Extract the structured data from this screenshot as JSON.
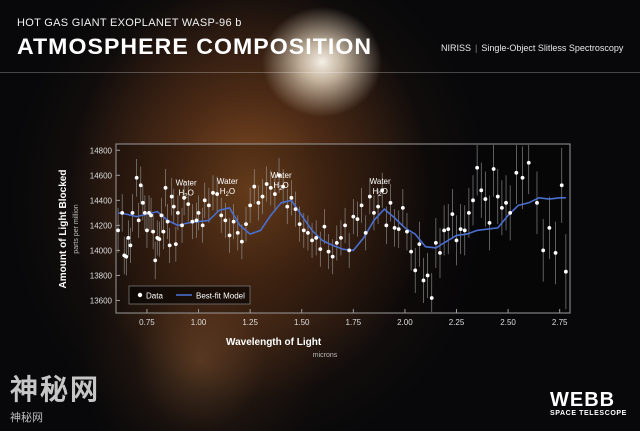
{
  "header": {
    "subtitle": "HOT GAS GIANT EXOPLANET WASP-96 b",
    "title": "ATMOSPHERE COMPOSITION",
    "instrument": "NIRISS",
    "mode": "Single-Object Slitless Spectroscopy"
  },
  "branding": {
    "logo": "WEBB",
    "sub": "SPACE TELESCOPE"
  },
  "watermark": {
    "main": "神秘网",
    "sub": "神秘网"
  },
  "colors": {
    "model_line": "#4a6fcf",
    "data_point": "#ffffff",
    "error_bar": "#9a9a9a"
  },
  "chart_data": {
    "type": "scatter",
    "title": "",
    "xlabel": "Wavelength of Light",
    "xlabel_sub": "microns",
    "ylabel": "Amount of Light Blocked",
    "ylabel_sub": "parts per million",
    "xlim": [
      0.6,
      2.8
    ],
    "ylim": [
      13500,
      14850
    ],
    "x_ticks": [
      0.75,
      1.0,
      1.25,
      1.5,
      1.75,
      2.0,
      2.25,
      2.5,
      2.75
    ],
    "x_tick_labels": [
      "0.75",
      "1.00",
      "1.25",
      "1.50",
      "1.75",
      "2.00",
      "2.25",
      "2.50",
      "2.75"
    ],
    "y_ticks": [
      13600,
      13800,
      14000,
      14200,
      14400,
      14600,
      14800
    ],
    "y_tick_labels": [
      "13600",
      "13800",
      "14000",
      "14200",
      "14400",
      "14600",
      "14800"
    ],
    "legend": {
      "placement": "bottom-left",
      "data_label": "Data",
      "model_label": "Best-fit Model"
    },
    "annotations": [
      {
        "label": "Water",
        "sub": "H2O",
        "x": 0.94,
        "y": 14520
      },
      {
        "label": "Water",
        "sub": "H2O",
        "x": 1.14,
        "y": 14530
      },
      {
        "label": "Water",
        "sub": "H2O",
        "x": 1.4,
        "y": 14580
      },
      {
        "label": "Water",
        "sub": "H2O",
        "x": 1.88,
        "y": 14530
      }
    ],
    "series": [
      {
        "name": "Data",
        "kind": "points",
        "x": [
          0.61,
          0.63,
          0.64,
          0.65,
          0.66,
          0.67,
          0.68,
          0.7,
          0.71,
          0.72,
          0.73,
          0.74,
          0.75,
          0.76,
          0.77,
          0.78,
          0.79,
          0.8,
          0.81,
          0.82,
          0.83,
          0.84,
          0.85,
          0.86,
          0.87,
          0.88,
          0.89,
          0.9,
          0.92,
          0.93,
          0.95,
          0.97,
          0.99,
          1.0,
          1.02,
          1.03,
          1.05,
          1.07,
          1.09,
          1.11,
          1.13,
          1.15,
          1.17,
          1.19,
          1.21,
          1.23,
          1.25,
          1.27,
          1.29,
          1.31,
          1.33,
          1.35,
          1.37,
          1.39,
          1.41,
          1.43,
          1.45,
          1.47,
          1.49,
          1.51,
          1.53,
          1.55,
          1.57,
          1.59,
          1.61,
          1.63,
          1.65,
          1.67,
          1.69,
          1.71,
          1.73,
          1.75,
          1.77,
          1.79,
          1.81,
          1.83,
          1.85,
          1.87,
          1.89,
          1.91,
          1.93,
          1.95,
          1.97,
          1.99,
          2.01,
          2.03,
          2.05,
          2.07,
          2.09,
          2.11,
          2.13,
          2.15,
          2.17,
          2.19,
          2.21,
          2.23,
          2.25,
          2.27,
          2.29,
          2.31,
          2.33,
          2.35,
          2.37,
          2.39,
          2.41,
          2.43,
          2.45,
          2.47,
          2.49,
          2.51,
          2.54,
          2.57,
          2.6,
          2.64,
          2.67,
          2.7,
          2.73,
          2.76,
          2.78
        ],
        "y": [
          14160,
          14300,
          13960,
          13950,
          14100,
          14040,
          14300,
          14580,
          14240,
          14520,
          14380,
          14300,
          14160,
          14300,
          14280,
          14150,
          13920,
          14100,
          14090,
          14280,
          14150,
          14500,
          14230,
          14040,
          14430,
          14350,
          14050,
          14300,
          14200,
          14420,
          14370,
          14230,
          14240,
          14300,
          14200,
          14400,
          14360,
          14460,
          14450,
          14280,
          14240,
          14120,
          14230,
          14140,
          14070,
          14210,
          14360,
          14510,
          14380,
          14430,
          14530,
          14500,
          14450,
          14600,
          14510,
          14350,
          14420,
          14330,
          14210,
          14160,
          14140,
          14080,
          14100,
          14010,
          14190,
          13990,
          13950,
          14060,
          14100,
          14200,
          14000,
          14270,
          14250,
          14360,
          14140,
          14430,
          14300,
          14350,
          14480,
          14200,
          14380,
          14180,
          14170,
          14340,
          14150,
          13990,
          13840,
          14050,
          13760,
          13800,
          13620,
          14060,
          13980,
          14160,
          14170,
          14290,
          14080,
          14170,
          14160,
          14300,
          14400,
          14660,
          14480,
          14410,
          14220,
          14650,
          14430,
          14340,
          14380,
          14300,
          14620,
          14580,
          14700,
          14380,
          14000,
          14180,
          13980,
          14520,
          13830
        ],
        "err": [
          180,
          150,
          150,
          150,
          140,
          140,
          150,
          150,
          140,
          150,
          140,
          140,
          140,
          140,
          140,
          140,
          150,
          140,
          140,
          140,
          140,
          150,
          140,
          140,
          150,
          140,
          140,
          140,
          140,
          140,
          140,
          140,
          140,
          140,
          140,
          140,
          140,
          140,
          140,
          140,
          140,
          140,
          140,
          140,
          140,
          140,
          140,
          140,
          140,
          140,
          140,
          140,
          140,
          140,
          140,
          140,
          140,
          140,
          140,
          140,
          140,
          140,
          140,
          140,
          140,
          140,
          140,
          140,
          140,
          140,
          140,
          140,
          140,
          140,
          140,
          140,
          140,
          140,
          140,
          150,
          150,
          150,
          150,
          150,
          150,
          150,
          180,
          180,
          180,
          180,
          200,
          200,
          200,
          200,
          200,
          200,
          200,
          200,
          200,
          200,
          200,
          220,
          220,
          220,
          220,
          220,
          220,
          220,
          220,
          220,
          250,
          250,
          250,
          250,
          250,
          250,
          250,
          300,
          300
        ]
      },
      {
        "name": "Best-fit Model",
        "kind": "line",
        "x": [
          0.61,
          0.65,
          0.7,
          0.75,
          0.8,
          0.85,
          0.9,
          0.95,
          1.0,
          1.05,
          1.1,
          1.15,
          1.2,
          1.25,
          1.3,
          1.35,
          1.4,
          1.45,
          1.5,
          1.55,
          1.6,
          1.65,
          1.7,
          1.75,
          1.8,
          1.85,
          1.9,
          1.95,
          2.0,
          2.05,
          2.1,
          2.15,
          2.2,
          2.25,
          2.3,
          2.35,
          2.4,
          2.45,
          2.5,
          2.55,
          2.6,
          2.65,
          2.7,
          2.75,
          2.78
        ],
        "y": [
          14300,
          14290,
          14270,
          14290,
          14310,
          14240,
          14200,
          14220,
          14230,
          14240,
          14320,
          14340,
          14200,
          14130,
          14160,
          14280,
          14380,
          14400,
          14280,
          14160,
          14080,
          14040,
          14010,
          14000,
          14100,
          14240,
          14330,
          14260,
          14180,
          14130,
          14030,
          14020,
          14070,
          14120,
          14130,
          14160,
          14170,
          14180,
          14280,
          14360,
          14380,
          14420,
          14410,
          14420,
          14420
        ]
      }
    ]
  }
}
